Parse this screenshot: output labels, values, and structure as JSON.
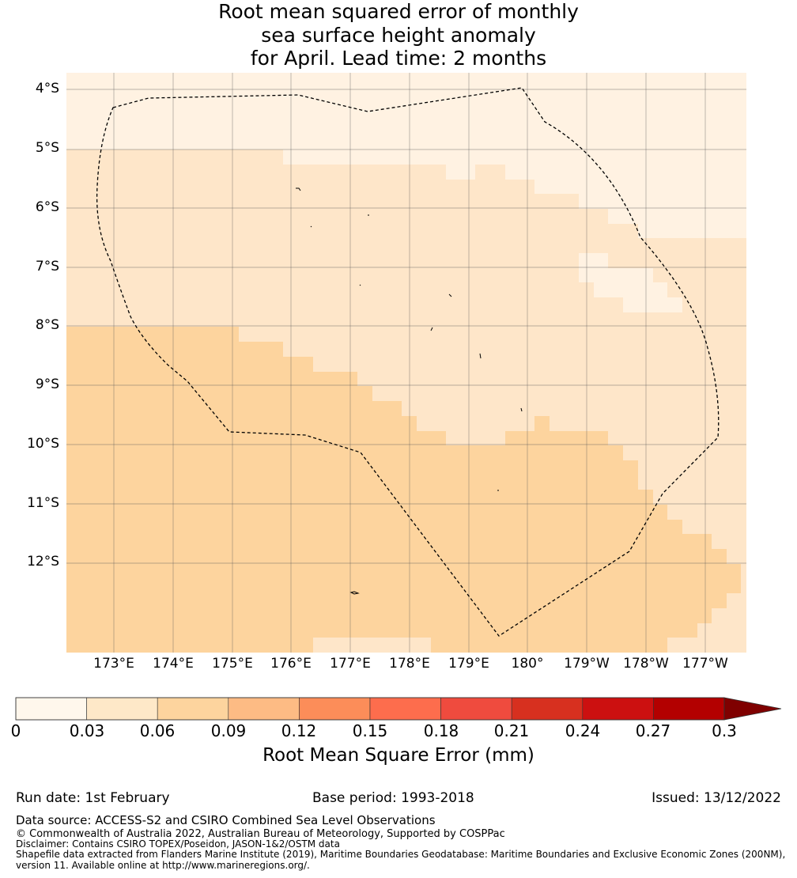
{
  "title": {
    "line1": "Root mean squared error of monthly",
    "line2": "sea surface height anomaly",
    "line3": "for April. Lead time: 2 months"
  },
  "map": {
    "lat_labels": [
      "4°S",
      "5°S",
      "6°S",
      "7°S",
      "8°S",
      "9°S",
      "10°S",
      "11°S",
      "12°S"
    ],
    "lon_labels": [
      "173°E",
      "174°E",
      "175°E",
      "176°E",
      "177°E",
      "178°E",
      "179°E",
      "180°",
      "179°W",
      "178°W",
      "177°W"
    ],
    "colors": {
      "c1": "#fff2e2",
      "c2": "#fee6c9",
      "c3": "#fdd49e",
      "border": "#000000"
    }
  },
  "colorbar": {
    "ticks": [
      "0",
      "0.03",
      "0.06",
      "0.09",
      "0.12",
      "0.15",
      "0.18",
      "0.21",
      "0.24",
      "0.27",
      "0.3"
    ],
    "colors": [
      "#fff7ec",
      "#fee8c8",
      "#fdd49e",
      "#fdbb84",
      "#fc8d59",
      "#fd6d4d",
      "#ef4b3e",
      "#d7301f",
      "#cc1010",
      "#b30000",
      "#7f0000"
    ],
    "label": "Root Mean Square Error (mm)"
  },
  "footer": {
    "run_date": "Run date: 1st February",
    "base_period": "Base period: 1993-2018",
    "issued": "Issued: 13/12/2022",
    "data_source": "Data source: ACCESS-S2 and CSIRO Combined Sea Level Observations",
    "copyright": "© Commonwealth of Australia 2022, Australian Bureau of Meteorology, Supported by COSPPac",
    "disclaimer": "Disclaimer: Contains CSIRO TOPEX/Poseidon, JASON-1&2/OSTM data",
    "shapefile1": "Shapefile data extracted from Flanders Marine Institute (2019), Maritime Boundaries Geodatabase: Maritime Boundaries and Exclusive Economic Zones (200NM),",
    "shapefile2": "version 11. Available online at http://www.marineregions.org/."
  }
}
